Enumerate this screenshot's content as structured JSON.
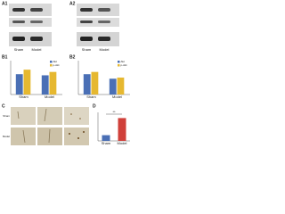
{
  "a1": {
    "label": "A1",
    "lanes": [
      "Sham",
      "Model"
    ]
  },
  "a2": {
    "label": "A2",
    "lanes": [
      "Sham",
      "Model"
    ]
  },
  "b1": {
    "label": "B1",
    "type": "bar",
    "categories": [
      "Sham",
      "Model"
    ],
    "series": [
      {
        "name": "Akt",
        "color": "#4a6fb5",
        "values": [
          0.9,
          0.85
        ]
      },
      {
        "name": "p-Akt",
        "color": "#e6b830",
        "values": [
          1.1,
          1.0
        ]
      }
    ],
    "ylim": [
      0,
      1.5
    ]
  },
  "b2": {
    "label": "B2",
    "type": "bar",
    "categories": [
      "Sham",
      "Model"
    ],
    "series": [
      {
        "name": "Akt",
        "color": "#4a6fb5",
        "values": [
          0.9,
          0.7
        ]
      },
      {
        "name": "p-Akt",
        "color": "#e6b830",
        "values": [
          1.0,
          0.75
        ]
      }
    ],
    "ylim": [
      0,
      1.5
    ]
  },
  "c": {
    "label": "C",
    "rows": [
      "Sham",
      "Model"
    ]
  },
  "d": {
    "label": "D",
    "type": "bar",
    "categories": [
      "Sham",
      "Model"
    ],
    "colors": [
      "#4a6fb5",
      "#d0403a"
    ],
    "values": [
      0.2,
      0.8
    ],
    "ylim": [
      0,
      1
    ],
    "annotation": "**"
  }
}
